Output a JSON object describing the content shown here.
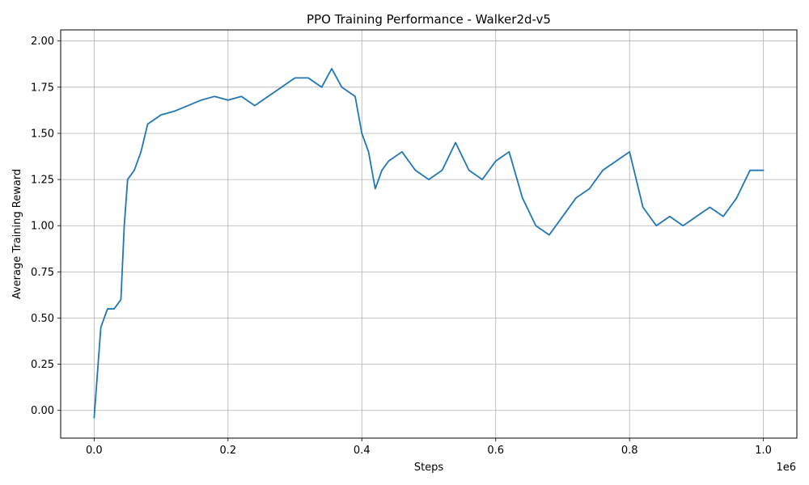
{
  "chart_data": {
    "type": "line",
    "title": "PPO Training Performance - Walker2d-v5",
    "xlabel": "Steps",
    "ylabel": "Average Training Reward",
    "x_offset_label": "1e6",
    "xlim": [
      -50000,
      1050000
    ],
    "ylim": [
      -0.15,
      2.06
    ],
    "grid": true,
    "x_ticks": [
      {
        "value": 0,
        "label": "0.0"
      },
      {
        "value": 200000,
        "label": "0.2"
      },
      {
        "value": 400000,
        "label": "0.4"
      },
      {
        "value": 600000,
        "label": "0.6"
      },
      {
        "value": 800000,
        "label": "0.8"
      },
      {
        "value": 1000000,
        "label": "1.0"
      }
    ],
    "y_ticks": [
      {
        "value": 0.0,
        "label": "0.00"
      },
      {
        "value": 0.25,
        "label": "0.25"
      },
      {
        "value": 0.5,
        "label": "0.50"
      },
      {
        "value": 0.75,
        "label": "0.75"
      },
      {
        "value": 1.0,
        "label": "1.00"
      },
      {
        "value": 1.25,
        "label": "1.25"
      },
      {
        "value": 1.5,
        "label": "1.50"
      },
      {
        "value": 1.75,
        "label": "1.75"
      },
      {
        "value": 2.0,
        "label": "2.00"
      }
    ],
    "series": [
      {
        "color": "#1f77b4",
        "x": [
          0,
          10000,
          20000,
          30000,
          40000,
          45000,
          50000,
          60000,
          70000,
          80000,
          100000,
          120000,
          140000,
          160000,
          180000,
          200000,
          220000,
          240000,
          260000,
          280000,
          300000,
          320000,
          340000,
          355000,
          370000,
          390000,
          400000,
          410000,
          420000,
          430000,
          440000,
          460000,
          480000,
          500000,
          520000,
          540000,
          560000,
          580000,
          600000,
          620000,
          640000,
          660000,
          680000,
          700000,
          720000,
          740000,
          760000,
          780000,
          800000,
          820000,
          840000,
          860000,
          880000,
          900000,
          920000,
          940000,
          960000,
          980000,
          1000000
        ],
        "values": [
          -0.04,
          0.45,
          0.55,
          0.55,
          0.6,
          1.0,
          1.25,
          1.3,
          1.4,
          1.55,
          1.6,
          1.62,
          1.65,
          1.68,
          1.7,
          1.68,
          1.7,
          1.65,
          1.7,
          1.75,
          1.8,
          1.8,
          1.75,
          1.85,
          1.75,
          1.7,
          1.5,
          1.4,
          1.2,
          1.3,
          1.35,
          1.4,
          1.3,
          1.25,
          1.3,
          1.45,
          1.3,
          1.25,
          1.35,
          1.4,
          1.15,
          1.0,
          0.95,
          1.05,
          1.15,
          1.2,
          1.3,
          1.35,
          1.4,
          1.1,
          1.0,
          1.05,
          1.0,
          1.05,
          1.1,
          1.05,
          1.15,
          1.3,
          1.3
        ]
      }
    ]
  }
}
